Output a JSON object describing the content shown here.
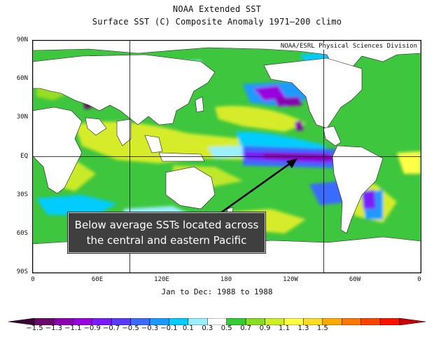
{
  "title": {
    "line1": "NOAA Extended SST",
    "line2": "Surface SST (C) Composite Anomaly 1971–200 climo"
  },
  "credit": "NOAA/ESRL Physical Sciences Division",
  "period": "Jan to Dec: 1988 to 1988",
  "annotation": "Below average SSTs located across the central and eastern Pacific",
  "map": {
    "latitude_labels": [
      "90N",
      "60N",
      "30N",
      "EQ",
      "30S",
      "60S",
      "90S"
    ],
    "longitude_labels": [
      "0",
      "60E",
      "120E",
      "180",
      "120W",
      "60W",
      "0"
    ],
    "projection": "cylindrical equidistant",
    "reference_lines": "lon 90E, lon 90W, equator",
    "continent_fill": "#ffffff",
    "arrow_color": "#000000"
  },
  "colorbar": {
    "labels": [
      "−1.5",
      "−1.3",
      "−1.1",
      "−0.9",
      "−0.7",
      "−0.5",
      "−0.3",
      "−0.1",
      "0.1",
      "0.3",
      "0.5",
      "0.7",
      "0.9",
      "1.1",
      "1.3",
      "1.5"
    ],
    "colors": [
      "#3a003a",
      "#6a0a6a",
      "#8a00b0",
      "#9900e0",
      "#7a1aff",
      "#5a3aff",
      "#3a6aff",
      "#1a9aff",
      "#00ccff",
      "#9af0ff",
      "#ffffff",
      "#33cc33",
      "#88dd22",
      "#ccee22",
      "#ffff44",
      "#ffdd22",
      "#ffaa00",
      "#ff7700",
      "#ff4400",
      "#ff1100",
      "#cc0000"
    ]
  }
}
